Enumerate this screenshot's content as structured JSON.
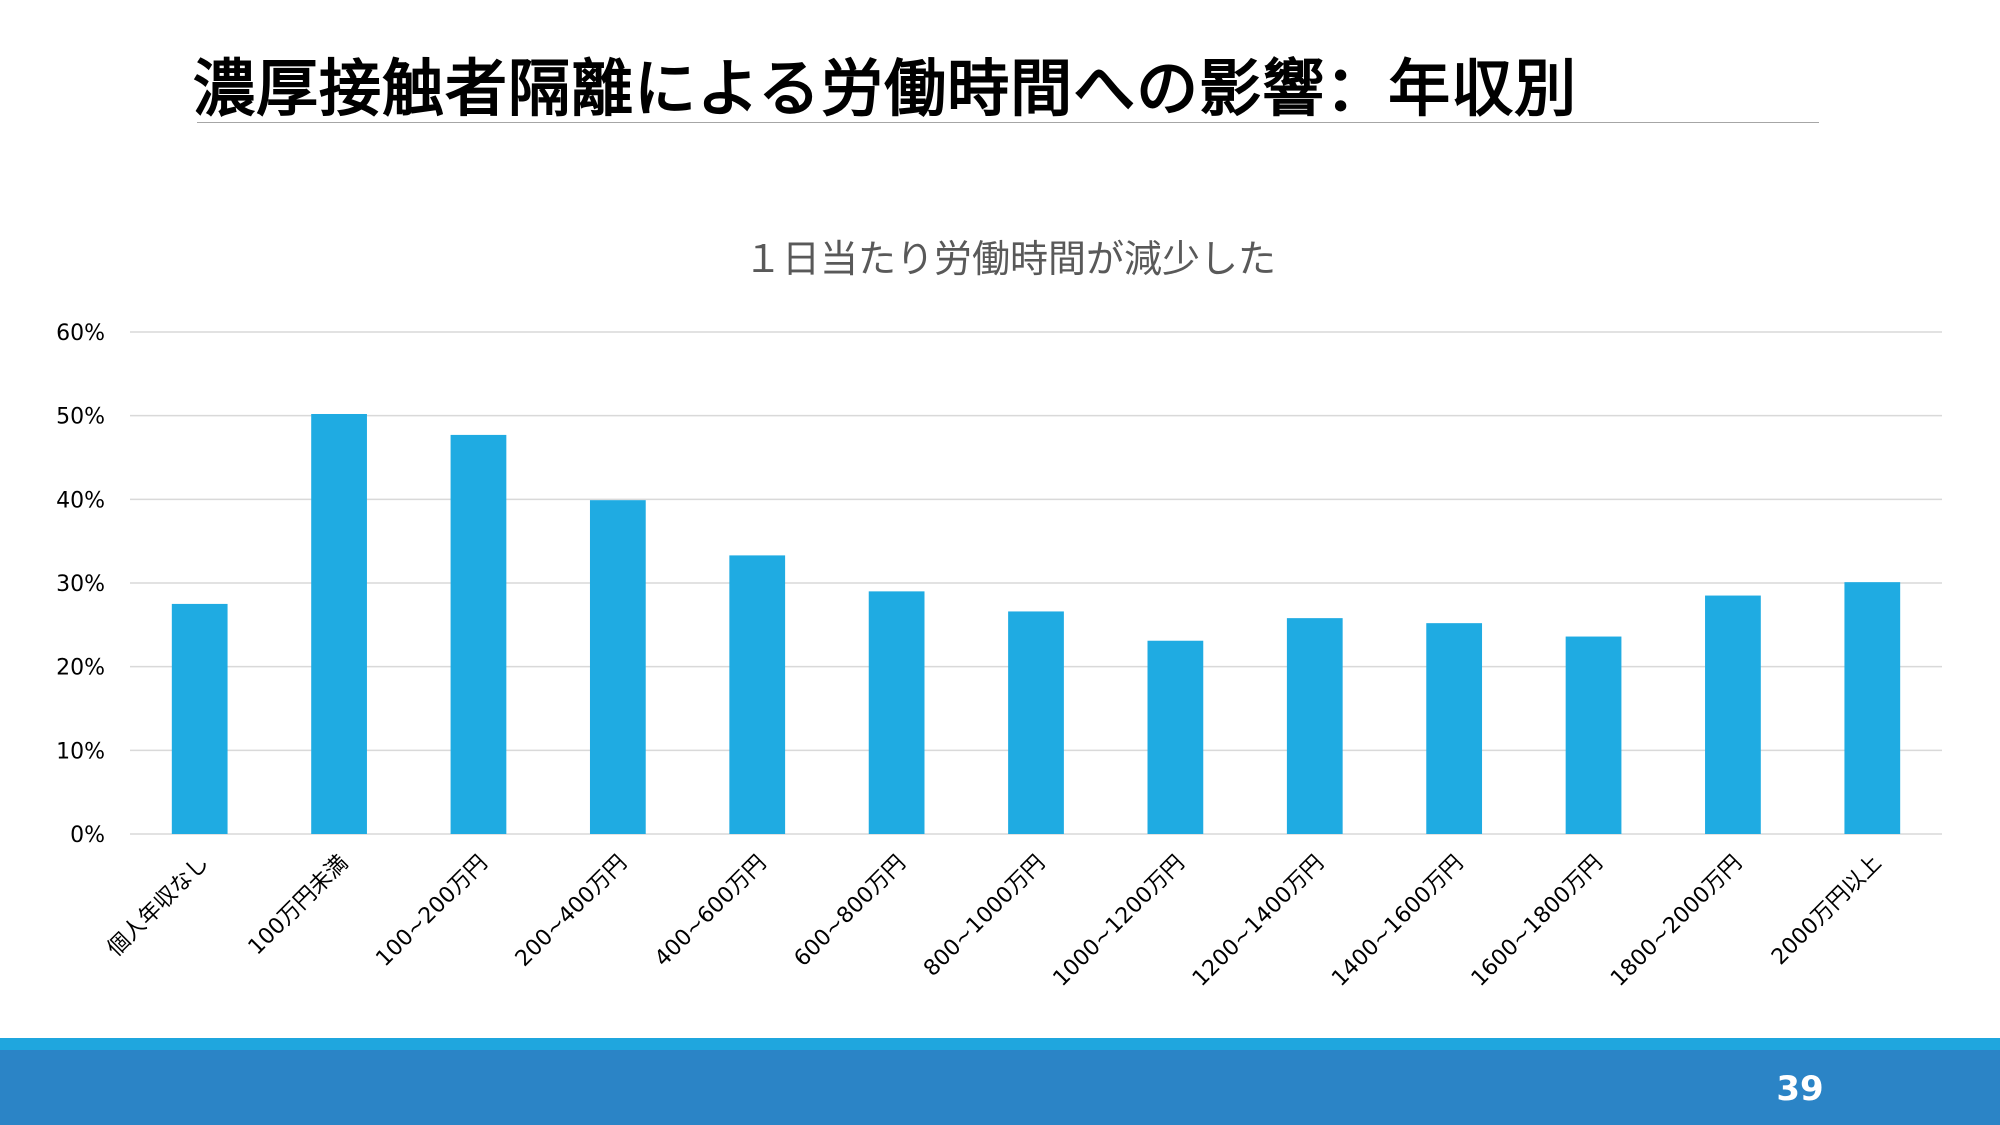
{
  "slide": {
    "title": "濃厚接触者隔離による労働時間への影響：年収別",
    "page_number": "39"
  },
  "colors": {
    "bar": "#1fabe2",
    "gridline": "#d9d9d9",
    "axis_text": "#000000",
    "chart_title": "#595959",
    "footer_band": "#2b84c6",
    "footer_stripe": "#1fa6de"
  },
  "chart_data": {
    "type": "bar",
    "title": "１日当たり労働時間が減少した",
    "xlabel": "",
    "ylabel": "",
    "ylim": [
      0,
      0.6
    ],
    "yticks": [
      0,
      0.1,
      0.2,
      0.3,
      0.4,
      0.5,
      0.6
    ],
    "ytick_labels": [
      "0%",
      "10%",
      "20%",
      "30%",
      "40%",
      "50%",
      "60%"
    ],
    "grid": true,
    "legend": "none",
    "categories": [
      "個人年収なし",
      "100万円未満",
      "100~200万円",
      "200~400万円",
      "400~600万円",
      "600~800万円",
      "800~1000万円",
      "1000~1200万円",
      "1200~1400万円",
      "1400~1600万円",
      "1600~1800万円",
      "1800~2000万円",
      "2000万円以上"
    ],
    "values": [
      0.275,
      0.502,
      0.477,
      0.399,
      0.333,
      0.29,
      0.266,
      0.231,
      0.258,
      0.252,
      0.236,
      0.285,
      0.301
    ]
  }
}
